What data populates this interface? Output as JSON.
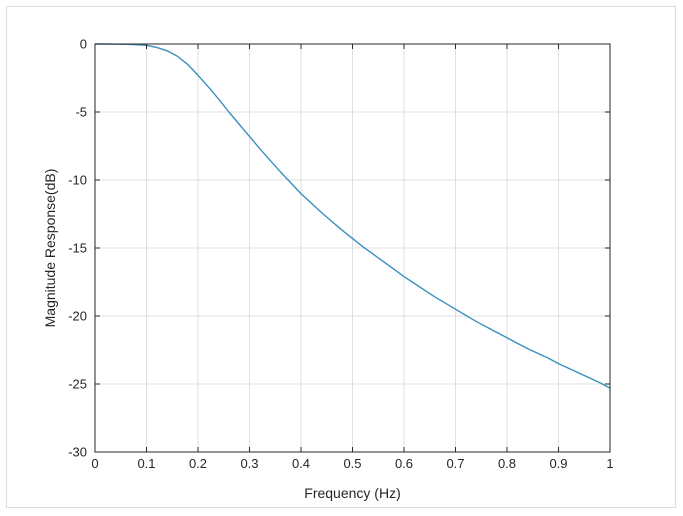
{
  "chart_data": {
    "type": "line",
    "title": "",
    "xlabel": "Frequency (Hz)",
    "ylabel": "Magnitude Response(dB)",
    "xlim": [
      0,
      1
    ],
    "ylim": [
      -30,
      0
    ],
    "xticks": [
      0,
      0.1,
      0.2,
      0.3,
      0.4,
      0.5,
      0.6,
      0.7,
      0.8,
      0.9,
      1
    ],
    "xtick_labels": [
      "0",
      "0.1",
      "0.2",
      "0.3",
      "0.4",
      "0.5",
      "0.6",
      "0.7",
      "0.8",
      "0.9",
      "1"
    ],
    "yticks": [
      0,
      -5,
      -10,
      -15,
      -20,
      -25,
      -30
    ],
    "ytick_labels": [
      "0",
      "-5",
      "-10",
      "-15",
      "-20",
      "-25",
      "-30"
    ],
    "grid": true,
    "legend": "none",
    "series": [
      {
        "color": "#3a8fbf",
        "x": [
          0,
          0.02,
          0.04,
          0.06,
          0.08,
          0.1,
          0.12,
          0.14,
          0.16,
          0.18,
          0.2,
          0.22,
          0.24,
          0.26,
          0.28,
          0.3,
          0.32,
          0.34,
          0.36,
          0.38,
          0.4,
          0.42,
          0.44,
          0.46,
          0.48,
          0.5,
          0.52,
          0.54,
          0.56,
          0.58,
          0.6,
          0.62,
          0.64,
          0.66,
          0.68,
          0.7,
          0.72,
          0.74,
          0.76,
          0.78,
          0.8,
          0.82,
          0.84,
          0.86,
          0.88,
          0.9,
          0.92,
          0.94,
          0.96,
          0.98,
          1.0
        ],
        "y": [
          0,
          0,
          -0.01,
          -0.02,
          -0.05,
          -0.1,
          -0.25,
          -0.5,
          -0.9,
          -1.5,
          -2.3,
          -3.15,
          -4.05,
          -5.0,
          -5.9,
          -6.8,
          -7.7,
          -8.55,
          -9.4,
          -10.2,
          -11.0,
          -11.7,
          -12.4,
          -13.05,
          -13.7,
          -14.3,
          -14.9,
          -15.45,
          -16.0,
          -16.55,
          -17.1,
          -17.6,
          -18.1,
          -18.6,
          -19.05,
          -19.5,
          -19.95,
          -20.4,
          -20.8,
          -21.2,
          -21.6,
          -22.0,
          -22.4,
          -22.75,
          -23.1,
          -23.5,
          -23.85,
          -24.2,
          -24.55,
          -24.9,
          -25.3
        ]
      }
    ]
  }
}
